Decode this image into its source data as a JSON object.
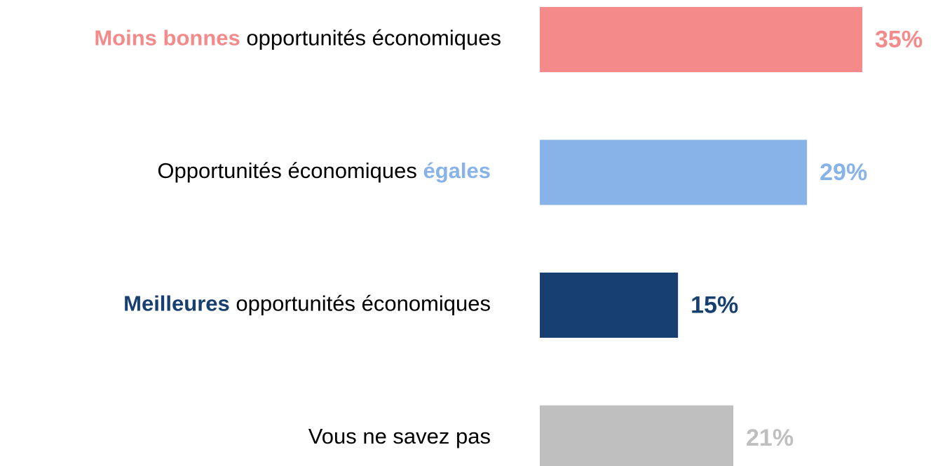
{
  "chart_data": {
    "type": "hbar",
    "categories": [
      [
        "Moins bonnes",
        " opportunités économiques"
      ],
      [
        "Opportunités économiques ",
        "égales"
      ],
      [
        "Meilleures",
        " opportunités économiques"
      ],
      [
        "Vous ne savez pas"
      ]
    ],
    "emphasis": [
      0,
      1,
      0,
      null
    ],
    "values": [
      35,
      29,
      15,
      21
    ],
    "value_labels": [
      "35%",
      "29%",
      "15%",
      "21%"
    ],
    "colors": [
      "#f48a8a",
      "#87b3e8",
      "#173f6f",
      "#bfbfbf"
    ]
  }
}
